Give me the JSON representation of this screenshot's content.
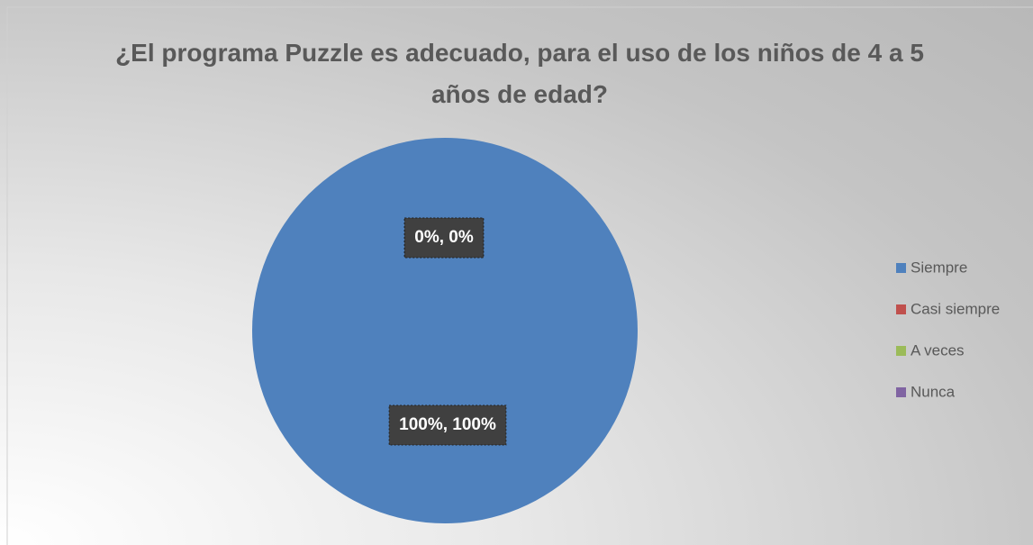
{
  "chart_data": {
    "type": "pie",
    "title": "¿El programa Puzzle es adecuado, para el uso de los niños de 4 a 5 años de edad?",
    "categories": [
      "Siempre",
      "Casi siempre",
      "A veces",
      "Nunca"
    ],
    "values": [
      100,
      0,
      0,
      0
    ],
    "value_labels": [
      "100%, 100%",
      "0%, 0%",
      "0%, 0%",
      "0%, 0%"
    ],
    "colors": [
      "#4f81bd",
      "#c0504d",
      "#9bbb59",
      "#8064a2"
    ],
    "legend": "right"
  }
}
